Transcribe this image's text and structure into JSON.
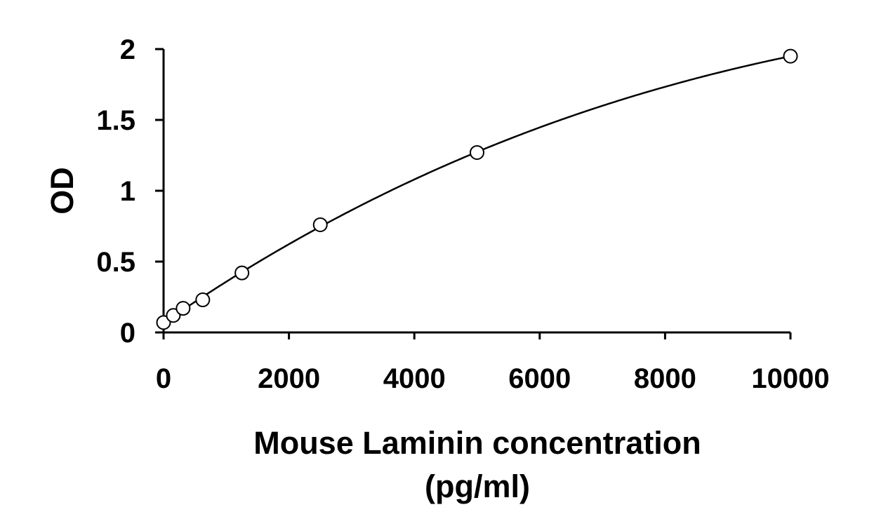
{
  "chart_data": {
    "type": "scatter",
    "title": "",
    "xlabel_lines": [
      "Mouse Laminin concentration",
      "(pg/ml)"
    ],
    "ylabel": "OD",
    "xlim": [
      0,
      10000
    ],
    "ylim": [
      0,
      2
    ],
    "x_ticks": [
      0,
      2000,
      4000,
      6000,
      8000,
      10000
    ],
    "x_tick_labels": [
      "0",
      "2000",
      "4000",
      "6000",
      "8000",
      "10000"
    ],
    "y_ticks": [
      0,
      0.5,
      1,
      1.5,
      2
    ],
    "y_tick_labels": [
      "0",
      "0.5",
      "1",
      "1.5",
      "2"
    ],
    "grid": false,
    "legend": "none",
    "line_color": "#000000",
    "marker": "open-circle",
    "trendline": "polynomial",
    "series": [
      {
        "x": [
          0,
          156,
          312,
          625,
          1250,
          2500,
          5000,
          10000
        ],
        "y": [
          0.07,
          0.12,
          0.17,
          0.23,
          0.42,
          0.76,
          1.27,
          1.95
        ]
      }
    ]
  }
}
